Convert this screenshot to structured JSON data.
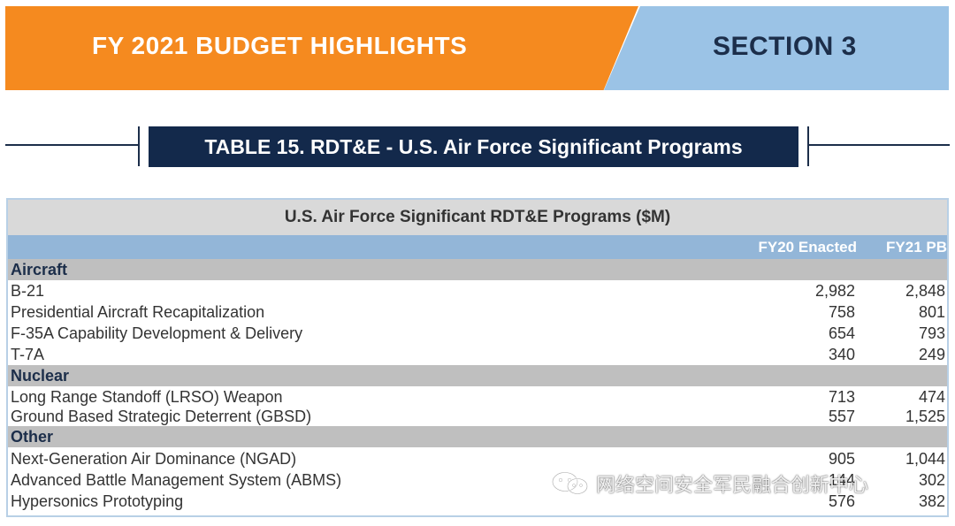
{
  "banner": {
    "title": "FY 2021 BUDGET HIGHLIGHTS",
    "section": "SECTION 3",
    "colors": {
      "orange": "#f58a1f",
      "blue": "#9bc3e6",
      "navy": "#13294b"
    }
  },
  "caption": "TABLE 15. RDT&E - U.S. Air Force Significant Programs",
  "table": {
    "title": "U.S. Air Force Significant RDT&E Programs ($M)",
    "columns": [
      "FY20 Enacted",
      "FY21 PB"
    ],
    "groups": [
      {
        "name": "Aircraft",
        "rows": [
          {
            "label": "B-21",
            "fy20": "2,982",
            "fy21": "2,848"
          },
          {
            "label": "Presidential Aircraft Recapitalization",
            "fy20": "758",
            "fy21": "801"
          },
          {
            "label": "F-35A Capability Development & Delivery",
            "fy20": "654",
            "fy21": "793"
          },
          {
            "label": "T-7A",
            "fy20": "340",
            "fy21": "249"
          }
        ]
      },
      {
        "name": "Nuclear",
        "rows": [
          {
            "label": "Long Range Standoff (LRSO) Weapon",
            "fy20": "713",
            "fy21": "474"
          },
          {
            "label": "Ground Based Strategic Deterrent (GBSD)",
            "fy20": "557",
            "fy21": "1,525"
          }
        ]
      },
      {
        "name": "Other",
        "rows": [
          {
            "label": "Next-Generation Air Dominance (NGAD)",
            "fy20": "905",
            "fy21": "1,044"
          },
          {
            "label": "Advanced Battle Management System (ABMS)",
            "fy20": "144",
            "fy21": "302"
          },
          {
            "label": "Hypersonics Prototyping",
            "fy20": "576",
            "fy21": "382"
          }
        ]
      }
    ]
  },
  "watermark": {
    "text": "网络空间安全军民融合创新中心",
    "icon": "wechat-icon"
  }
}
